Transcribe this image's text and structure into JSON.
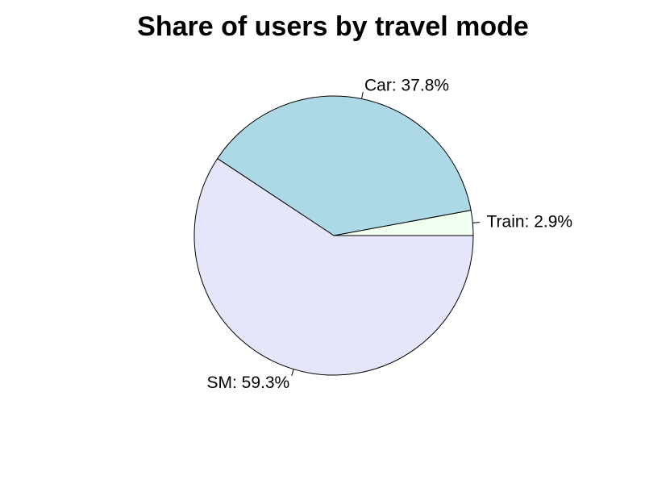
{
  "chart_data": {
    "type": "pie",
    "title": "Share of users by travel mode",
    "slices": [
      {
        "label": "Train: 2.9%",
        "value": 2.9,
        "color": "#f0fff0"
      },
      {
        "label": "Car: 37.8%",
        "value": 37.8,
        "color": "#add8e6"
      },
      {
        "label": "SM: 59.3%",
        "value": 59.3,
        "color": "#e6e6fa"
      }
    ],
    "start": "3 o'clock",
    "direction": "counterclockwise",
    "legend": "none",
    "grid": false
  }
}
